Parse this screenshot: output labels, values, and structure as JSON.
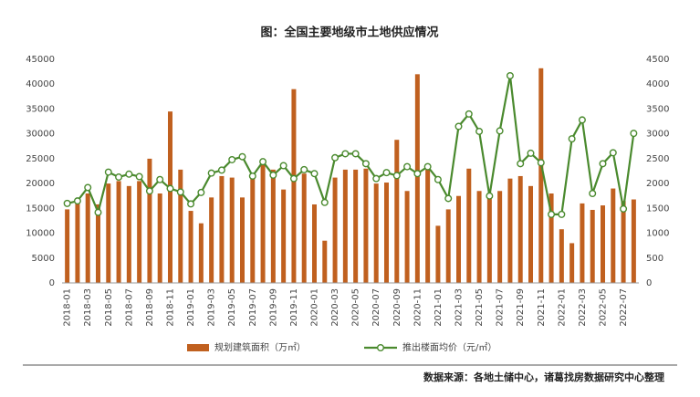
{
  "chart_data": {
    "type": "bar_line",
    "title": "图：全国主要地级市土地供应情况",
    "source": "数据来源：各地土储中心，诸葛找房数据研究中心整理",
    "categories": [
      "2018-01",
      null,
      "2018-03",
      null,
      "2018-05",
      null,
      "2018-07",
      null,
      "2018-09",
      null,
      "2018-11",
      null,
      "2019-01",
      null,
      "2019-03",
      null,
      "2019-05",
      null,
      "2019-07",
      null,
      "2019-09",
      null,
      "2019-11",
      null,
      "2020-01",
      null,
      "2020-03",
      null,
      "2020-05",
      null,
      "2020-07",
      null,
      "2020-09",
      null,
      "2020-11",
      null,
      "2021-01",
      null,
      "2021-03",
      null,
      "2021-05",
      null,
      "2021-07",
      null,
      "2021-09",
      null,
      "2021-11",
      null,
      "2022-01",
      null,
      "2022-03",
      null,
      "2022-05",
      null,
      "2022-07",
      null
    ],
    "series": [
      {
        "name": "规划建筑面积（万㎡）",
        "type": "bar",
        "color": "#c0601f",
        "values": [
          14800,
          16000,
          18000,
          15800,
          20000,
          20500,
          19500,
          20500,
          25000,
          18000,
          34500,
          22800,
          14500,
          12000,
          17200,
          21500,
          21200,
          17200,
          21000,
          24500,
          22800,
          18800,
          39000,
          22000,
          15800,
          8500,
          21200,
          22800,
          22800,
          23000,
          20000,
          20200,
          28800,
          18500,
          42000,
          22800,
          11500,
          14800,
          17500,
          23000,
          18500,
          18000,
          18500,
          21000,
          21500,
          19500,
          43200,
          18000,
          10800,
          8000,
          16000,
          14700,
          15600,
          19000,
          16500,
          16800
        ]
      },
      {
        "name": "推出楼面均价（元/㎡）",
        "type": "line",
        "axis": "y2",
        "color": "#4a8a2e",
        "values": [
          1600,
          1650,
          1920,
          1420,
          2230,
          2130,
          2190,
          2140,
          1850,
          2080,
          1900,
          1830,
          1590,
          1820,
          2210,
          2270,
          2480,
          2540,
          2150,
          2440,
          2170,
          2360,
          2100,
          2280,
          2200,
          1620,
          2520,
          2600,
          2600,
          2400,
          2100,
          2220,
          2160,
          2340,
          2200,
          2340,
          2080,
          1700,
          3150,
          3400,
          3050,
          1750,
          3060,
          4170,
          2400,
          2610,
          2420,
          1380,
          1380,
          2900,
          3280,
          1800,
          2400,
          2620,
          1490,
          3010
        ]
      }
    ],
    "ylim": [
      0,
      45000
    ],
    "yticks": [
      0,
      5000,
      10000,
      15000,
      20000,
      25000,
      30000,
      35000,
      40000,
      45000
    ],
    "y2lim": [
      0,
      4500
    ],
    "y2ticks": [
      0,
      500,
      1000,
      1500,
      2000,
      2500,
      3000,
      3500,
      4000,
      4500
    ],
    "grid": false,
    "legend": "bottom"
  }
}
